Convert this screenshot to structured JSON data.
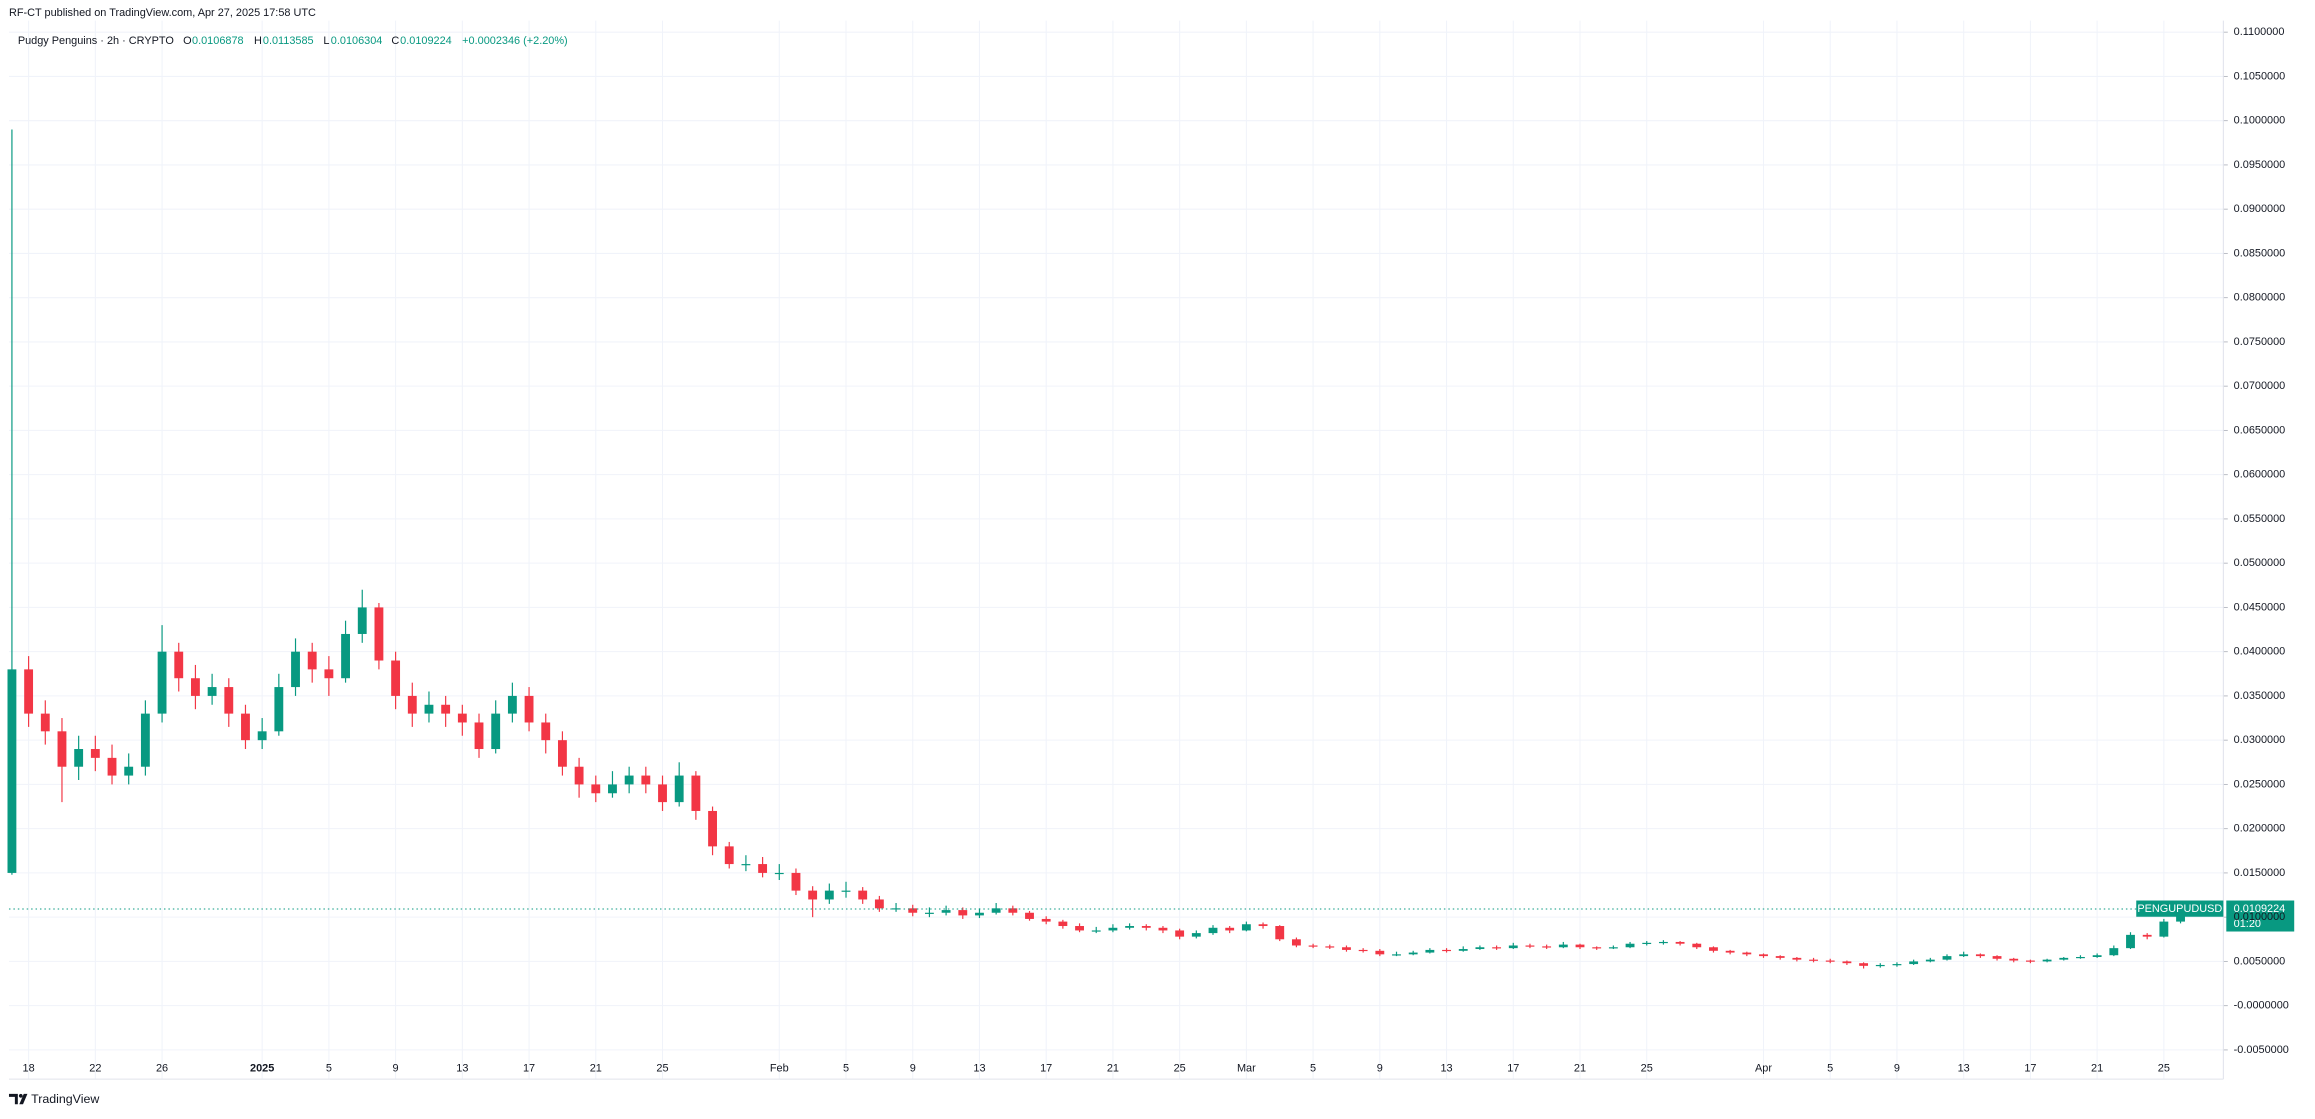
{
  "header": {
    "publisher": "RF-CT published on TradingView.com, Apr 27, 2025 17:58 UTC"
  },
  "footer": {
    "brand": "TradingView"
  },
  "chart_data": {
    "type": "candlestick",
    "symbol_info": "Pudgy Penguins · 2h · CRYPTO",
    "legend": {
      "o_label": "O",
      "o_value": "0.0106878",
      "h_label": "H",
      "h_value": "0.0113585",
      "l_label": "L",
      "l_value": "0.0106304",
      "c_label": "C",
      "c_value": "0.0109224",
      "change": "+0.0002346 (+2.20%)"
    },
    "price_tag": {
      "symbol": "PENGUPUDUSD",
      "price": "0.0109224",
      "countdown": "01:20"
    },
    "up_color": "#089981",
    "down_color": "#f23645",
    "grid": true,
    "categories": [
      null,
      "18",
      null,
      null,
      null,
      "22",
      null,
      null,
      null,
      "26",
      null,
      null,
      null,
      null,
      null,
      "2025",
      null,
      null,
      null,
      "5",
      null,
      null,
      null,
      "9",
      null,
      null,
      null,
      "13",
      null,
      null,
      null,
      "17",
      null,
      null,
      null,
      "21",
      null,
      null,
      null,
      "25",
      null,
      null,
      null,
      null,
      null,
      null,
      "Feb",
      null,
      null,
      null,
      "5",
      null,
      null,
      null,
      "9",
      null,
      null,
      null,
      "13",
      null,
      null,
      null,
      "17",
      null,
      null,
      null,
      "21",
      null,
      null,
      null,
      "25",
      null,
      null,
      null,
      "Mar",
      null,
      null,
      null,
      "5",
      null,
      null,
      null,
      "9",
      null,
      null,
      null,
      "13",
      null,
      null,
      null,
      "17",
      null,
      null,
      null,
      "21",
      null,
      null,
      null,
      "25",
      null,
      null,
      null,
      null,
      null,
      null,
      "Apr",
      null,
      null,
      null,
      "5",
      null,
      null,
      null,
      "9",
      null,
      null,
      null,
      "13",
      null,
      null,
      null,
      "17",
      null,
      null,
      null,
      "21",
      null,
      null,
      null,
      "25",
      null,
      null
    ],
    "open": [
      0.015,
      0.038,
      0.033,
      0.031,
      0.027,
      0.029,
      0.028,
      0.026,
      0.027,
      0.033,
      0.04,
      0.037,
      0.035,
      0.036,
      0.033,
      0.03,
      0.031,
      0.036,
      0.04,
      0.038,
      0.037,
      0.042,
      0.045,
      0.039,
      0.035,
      0.033,
      0.034,
      0.033,
      0.032,
      0.029,
      0.033,
      0.035,
      0.032,
      0.03,
      0.027,
      0.025,
      0.024,
      0.025,
      0.026,
      0.025,
      0.023,
      0.026,
      0.022,
      0.018,
      0.016,
      0.016,
      0.015,
      0.015,
      0.013,
      0.012,
      0.013,
      0.013,
      0.012,
      0.011,
      0.011,
      0.0105,
      0.0105,
      0.0108,
      0.0102,
      0.0105,
      0.011,
      0.0105,
      0.0098,
      0.0095,
      0.009,
      0.0085,
      0.0085,
      0.0088,
      0.009,
      0.0088,
      0.0085,
      0.0078,
      0.0082,
      0.0088,
      0.0085,
      0.0092,
      0.009,
      0.0075,
      0.0068,
      0.0067,
      0.0066,
      0.0063,
      0.0062,
      0.0058,
      0.0058,
      0.006,
      0.0063,
      0.0062,
      0.0064,
      0.0066,
      0.0065,
      0.0068,
      0.0067,
      0.0066,
      0.0069,
      0.0066,
      0.0065,
      0.0066,
      0.007,
      0.0071,
      0.0072,
      0.007,
      0.0066,
      0.0062,
      0.006,
      0.0058,
      0.0056,
      0.0054,
      0.0052,
      0.0051,
      0.005,
      0.0048,
      0.0045,
      0.0046,
      0.0047,
      0.005,
      0.0052,
      0.0056,
      0.0058,
      0.0056,
      0.0053,
      0.0051,
      0.005,
      0.0052,
      0.0054,
      0.0055,
      0.0057,
      0.0065,
      0.008,
      0.0078,
      0.0095,
      0.0102
    ],
    "high": [
      0.099,
      0.0395,
      0.0345,
      0.0325,
      0.0305,
      0.0305,
      0.0295,
      0.0285,
      0.0345,
      0.043,
      0.041,
      0.0385,
      0.0375,
      0.037,
      0.034,
      0.0325,
      0.0375,
      0.0415,
      0.041,
      0.0395,
      0.0435,
      0.047,
      0.0455,
      0.04,
      0.0365,
      0.0355,
      0.035,
      0.034,
      0.033,
      0.0345,
      0.0365,
      0.036,
      0.033,
      0.031,
      0.028,
      0.026,
      0.0265,
      0.027,
      0.027,
      0.026,
      0.0275,
      0.0265,
      0.0225,
      0.0185,
      0.017,
      0.0168,
      0.016,
      0.0155,
      0.0135,
      0.0138,
      0.014,
      0.0134,
      0.0124,
      0.0116,
      0.0114,
      0.0111,
      0.0113,
      0.0111,
      0.011,
      0.0116,
      0.0113,
      0.0107,
      0.0101,
      0.0097,
      0.0093,
      0.0089,
      0.0092,
      0.0093,
      0.0092,
      0.009,
      0.0087,
      0.0085,
      0.0091,
      0.009,
      0.0095,
      0.0094,
      0.0091,
      0.0077,
      0.007,
      0.0069,
      0.0068,
      0.0065,
      0.0064,
      0.0061,
      0.0062,
      0.0065,
      0.0065,
      0.0067,
      0.0068,
      0.0068,
      0.0071,
      0.007,
      0.0069,
      0.0072,
      0.007,
      0.0067,
      0.0068,
      0.0072,
      0.0073,
      0.0074,
      0.0073,
      0.0071,
      0.0067,
      0.0063,
      0.0061,
      0.0059,
      0.0057,
      0.0055,
      0.0054,
      0.0053,
      0.0051,
      0.0049,
      0.0048,
      0.0049,
      0.0052,
      0.0054,
      0.0058,
      0.0061,
      0.0059,
      0.0057,
      0.0054,
      0.0052,
      0.0053,
      0.0055,
      0.0057,
      0.0059,
      0.0068,
      0.0083,
      0.0082,
      0.0098,
      0.0106,
      0.0113585
    ],
    "low": [
      0.0148,
      0.0315,
      0.0295,
      0.023,
      0.0255,
      0.0265,
      0.025,
      0.025,
      0.026,
      0.032,
      0.0355,
      0.0335,
      0.034,
      0.0315,
      0.029,
      0.029,
      0.0305,
      0.035,
      0.0365,
      0.035,
      0.0365,
      0.041,
      0.038,
      0.0335,
      0.0315,
      0.032,
      0.0315,
      0.0305,
      0.028,
      0.0285,
      0.032,
      0.031,
      0.0285,
      0.026,
      0.0235,
      0.023,
      0.0235,
      0.024,
      0.024,
      0.022,
      0.0225,
      0.021,
      0.017,
      0.0155,
      0.0152,
      0.0145,
      0.0142,
      0.0125,
      0.01,
      0.0115,
      0.0122,
      0.0115,
      0.0106,
      0.0106,
      0.0101,
      0.01,
      0.0102,
      0.0098,
      0.0099,
      0.0103,
      0.0102,
      0.0096,
      0.0092,
      0.0087,
      0.0083,
      0.0082,
      0.0083,
      0.0086,
      0.0085,
      0.0082,
      0.0075,
      0.0076,
      0.008,
      0.0082,
      0.0084,
      0.0087,
      0.0073,
      0.0066,
      0.0065,
      0.0064,
      0.0061,
      0.006,
      0.0056,
      0.0056,
      0.0057,
      0.0059,
      0.006,
      0.0061,
      0.0063,
      0.0063,
      0.0064,
      0.0065,
      0.0064,
      0.0065,
      0.0064,
      0.0063,
      0.0064,
      0.0065,
      0.0068,
      0.0069,
      0.0068,
      0.0064,
      0.006,
      0.0058,
      0.0056,
      0.0054,
      0.0052,
      0.005,
      0.0049,
      0.0048,
      0.0046,
      0.0042,
      0.0043,
      0.0044,
      0.0046,
      0.0049,
      0.0051,
      0.0055,
      0.0054,
      0.0051,
      0.0049,
      0.0048,
      0.0049,
      0.0051,
      0.0053,
      0.0054,
      0.0056,
      0.0064,
      0.0075,
      0.0077,
      0.0093,
      0.0101
    ],
    "close": [
      0.038,
      0.033,
      0.031,
      0.027,
      0.029,
      0.028,
      0.026,
      0.027,
      0.033,
      0.04,
      0.037,
      0.035,
      0.036,
      0.033,
      0.03,
      0.031,
      0.036,
      0.04,
      0.038,
      0.037,
      0.042,
      0.045,
      0.039,
      0.035,
      0.033,
      0.034,
      0.033,
      0.032,
      0.029,
      0.033,
      0.035,
      0.032,
      0.03,
      0.027,
      0.025,
      0.024,
      0.025,
      0.026,
      0.025,
      0.023,
      0.026,
      0.022,
      0.018,
      0.016,
      0.016,
      0.015,
      0.015,
      0.013,
      0.012,
      0.013,
      0.013,
      0.012,
      0.011,
      0.011,
      0.0105,
      0.0105,
      0.0108,
      0.0102,
      0.0105,
      0.011,
      0.0105,
      0.0098,
      0.0095,
      0.009,
      0.0085,
      0.0085,
      0.0088,
      0.009,
      0.0088,
      0.0085,
      0.0078,
      0.0082,
      0.0088,
      0.0085,
      0.0092,
      0.009,
      0.0075,
      0.0068,
      0.0067,
      0.0066,
      0.0063,
      0.0062,
      0.0058,
      0.0058,
      0.006,
      0.0063,
      0.0062,
      0.0064,
      0.0066,
      0.0065,
      0.0068,
      0.0067,
      0.0066,
      0.0069,
      0.0066,
      0.0065,
      0.0066,
      0.007,
      0.0071,
      0.0072,
      0.007,
      0.0066,
      0.0062,
      0.006,
      0.0058,
      0.0056,
      0.0054,
      0.0052,
      0.0051,
      0.005,
      0.0048,
      0.0045,
      0.0046,
      0.0047,
      0.005,
      0.0052,
      0.0056,
      0.0058,
      0.0056,
      0.0053,
      0.0051,
      0.005,
      0.0052,
      0.0054,
      0.0055,
      0.0057,
      0.0065,
      0.008,
      0.0078,
      0.0095,
      0.0102,
      0.0109224
    ],
    "ylim": [
      -0.0058,
      0.1113
    ],
    "yticks": [
      {
        "value": 0.11,
        "label": "0.1100000"
      },
      {
        "value": 0.105,
        "label": "0.1050000"
      },
      {
        "value": 0.1,
        "label": "0.1000000"
      },
      {
        "value": 0.095,
        "label": "0.0950000"
      },
      {
        "value": 0.09,
        "label": "0.0900000"
      },
      {
        "value": 0.085,
        "label": "0.0850000"
      },
      {
        "value": 0.08,
        "label": "0.0800000"
      },
      {
        "value": 0.075,
        "label": "0.0750000"
      },
      {
        "value": 0.07,
        "label": "0.0700000"
      },
      {
        "value": 0.065,
        "label": "0.0650000"
      },
      {
        "value": 0.06,
        "label": "0.0600000"
      },
      {
        "value": 0.055,
        "label": "0.0550000"
      },
      {
        "value": 0.05,
        "label": "0.0500000"
      },
      {
        "value": 0.045,
        "label": "0.0450000"
      },
      {
        "value": 0.04,
        "label": "0.0400000"
      },
      {
        "value": 0.035,
        "label": "0.0350000"
      },
      {
        "value": 0.03,
        "label": "0.0300000"
      },
      {
        "value": 0.025,
        "label": "0.0250000"
      },
      {
        "value": 0.02,
        "label": "0.0200000"
      },
      {
        "value": 0.015,
        "label": "0.0150000"
      },
      {
        "value": 0.01,
        "label": "0.0100000"
      },
      {
        "value": 0.005,
        "label": "0.0050000"
      },
      {
        "value": 0,
        "label": "-0.0000000"
      },
      {
        "value": -0.005,
        "label": "-0.0050000"
      }
    ]
  }
}
